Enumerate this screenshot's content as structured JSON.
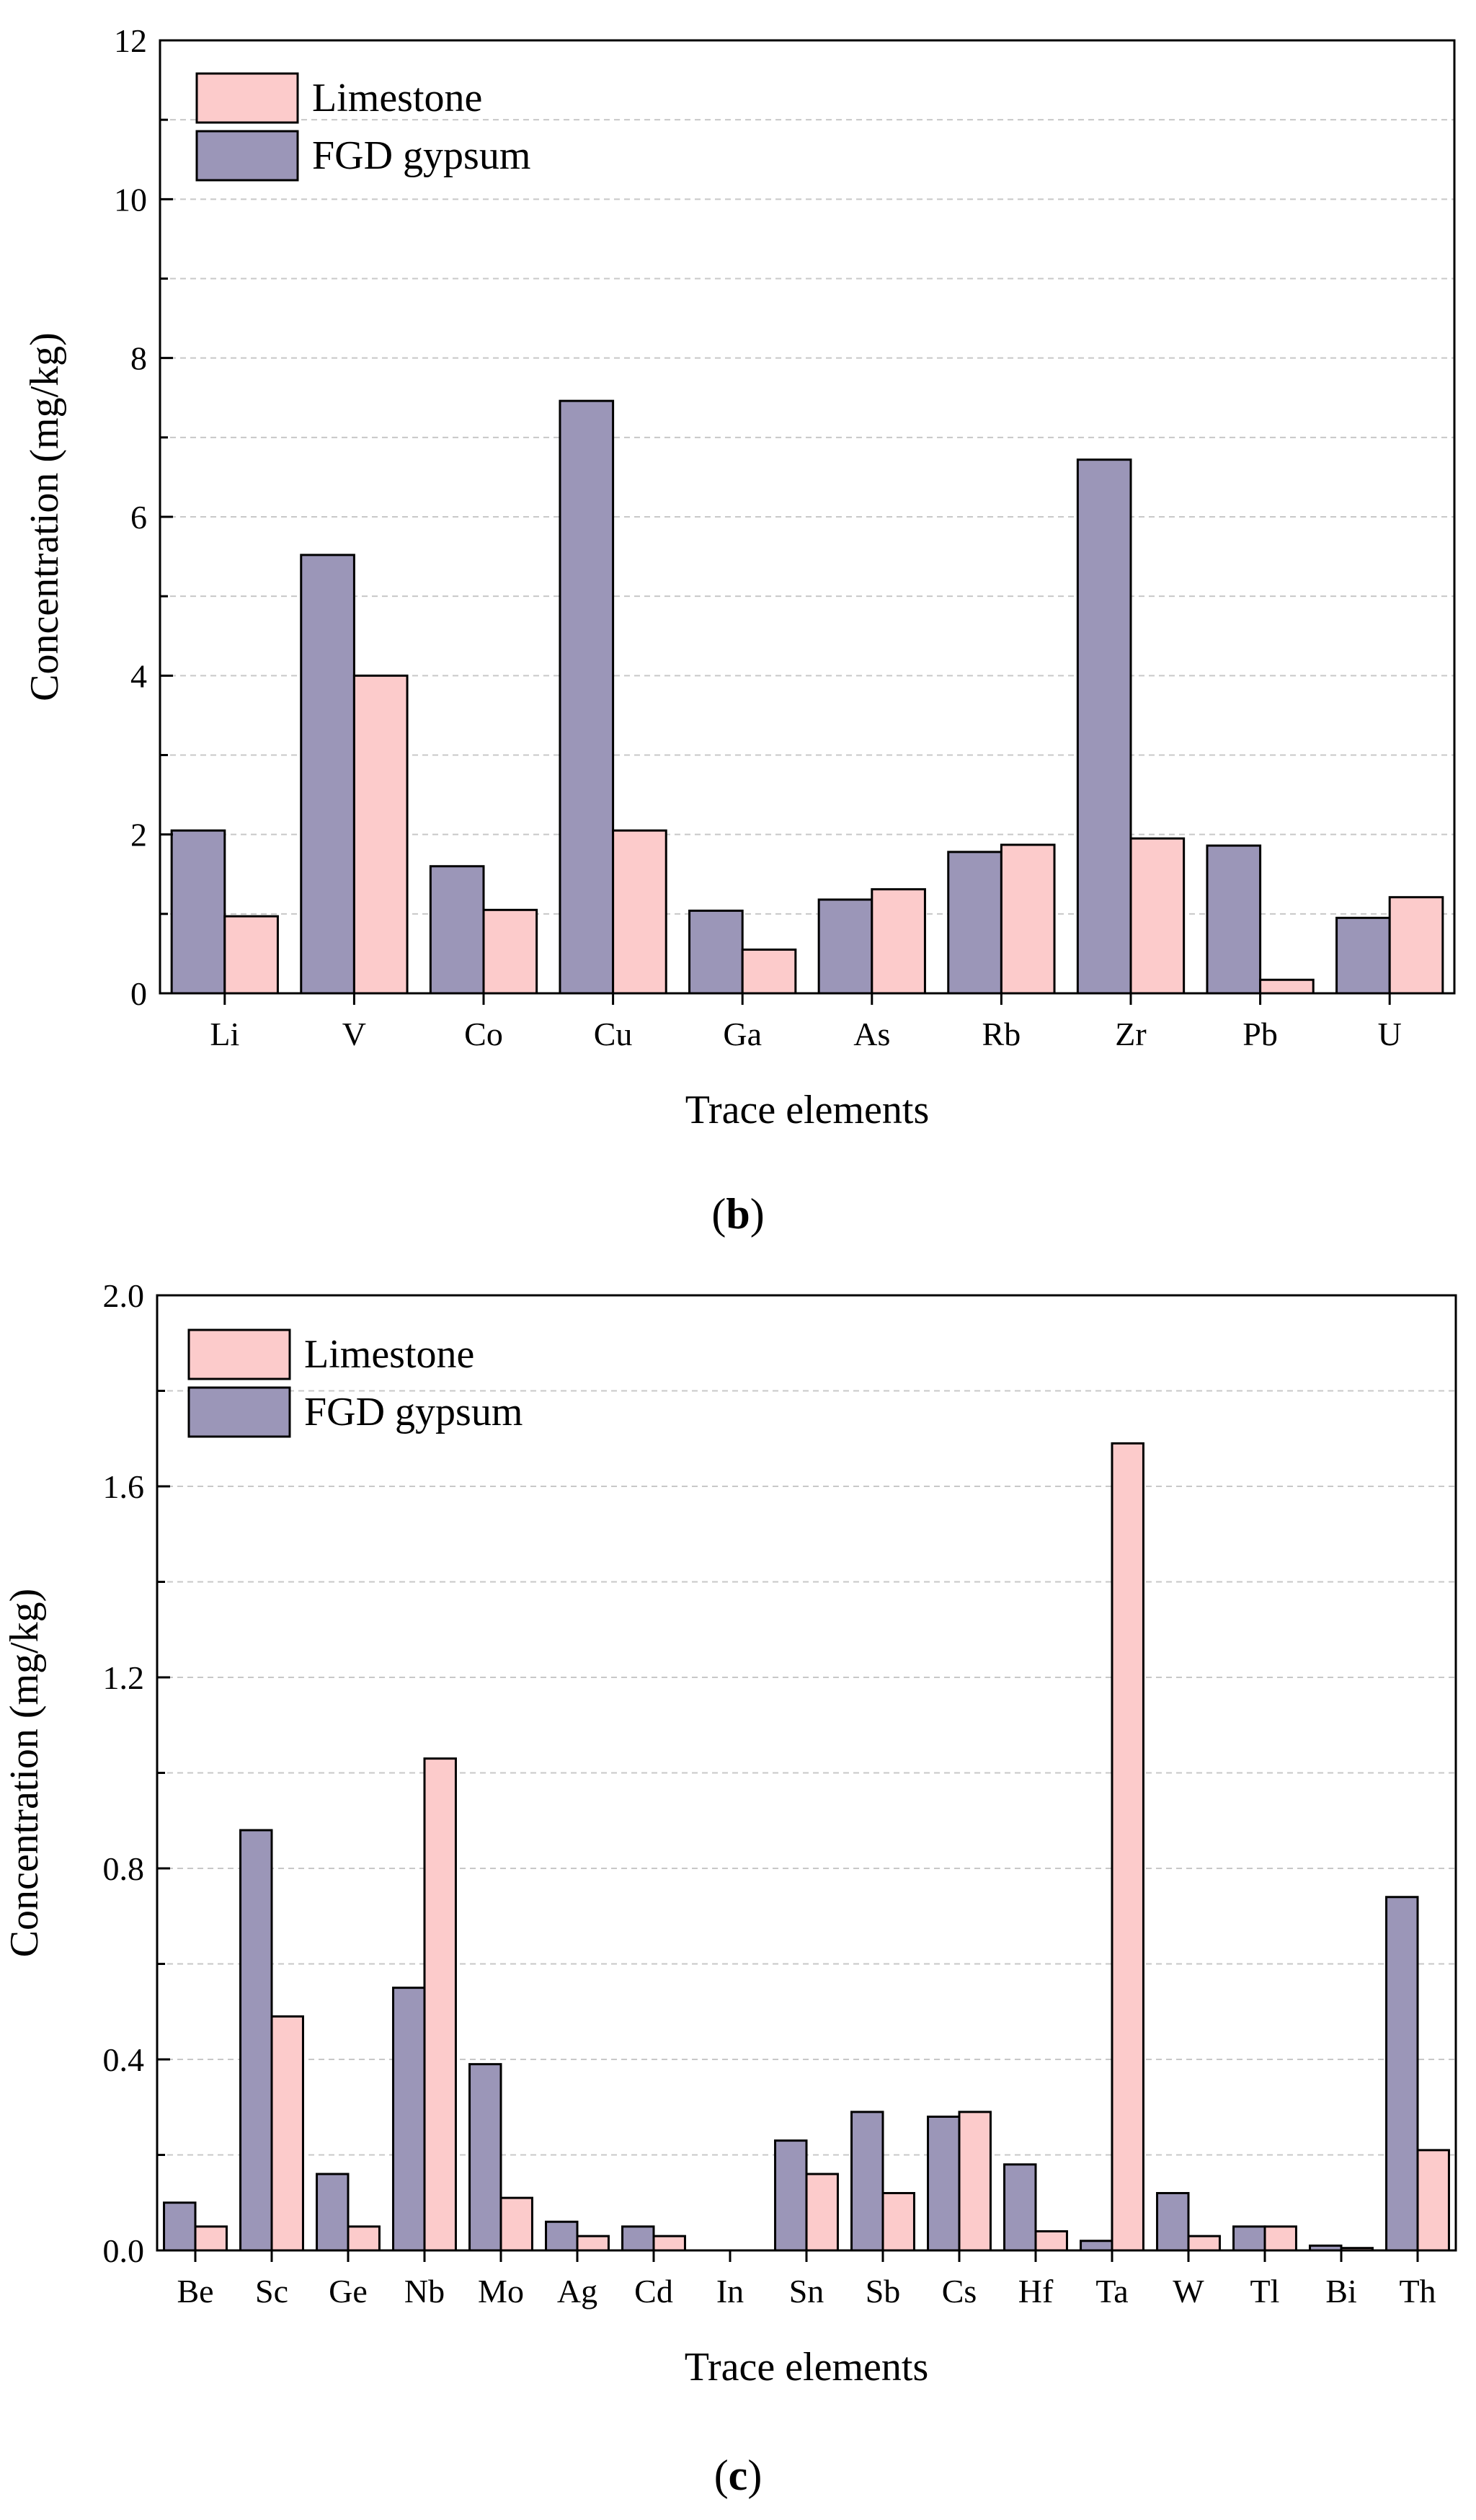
{
  "colors": {
    "limestone": "#fccbcb",
    "fgd_gypsum": "#9b96b8",
    "axis": "#000000",
    "grid": "#c8c8c8"
  },
  "chart_data": [
    {
      "id": "b",
      "type": "bar",
      "panel_label": "b",
      "xlabel": "Trace elements",
      "ylabel": "Concentration (mg/kg)",
      "ylim": [
        0,
        12
      ],
      "yticks": [
        "0",
        "2",
        "4",
        "6",
        "8",
        "10",
        "12"
      ],
      "grid": "horizontal dashed",
      "legend_position": "top-left",
      "legend_order": [
        "Limestone",
        "FGD gypsum"
      ],
      "categories": [
        "Li",
        "V",
        "Co",
        "Cu",
        "Ga",
        "As",
        "Rb",
        "Zr",
        "Pb",
        "U"
      ],
      "series": [
        {
          "name": "FGD gypsum",
          "values": [
            2.05,
            5.52,
            1.6,
            7.46,
            1.04,
            1.18,
            1.78,
            6.72,
            1.86,
            0.95
          ]
        },
        {
          "name": "Limestone",
          "values": [
            0.97,
            4.0,
            1.05,
            2.05,
            0.55,
            1.31,
            1.87,
            1.95,
            0.17,
            1.21
          ]
        }
      ]
    },
    {
      "id": "c",
      "type": "bar",
      "panel_label": "c",
      "xlabel": "Trace elements",
      "ylabel": "Concentration (mg/kg)",
      "ylim": [
        0,
        2.0
      ],
      "yticks": [
        "0.0",
        "0.4",
        "0.8",
        "1.2",
        "1.6",
        "2.0"
      ],
      "grid": "horizontal dashed",
      "legend_position": "top-left",
      "legend_order": [
        "Limestone",
        "FGD gypsum"
      ],
      "categories": [
        "Be",
        "Sc",
        "Ge",
        "Nb",
        "Mo",
        "Ag",
        "Cd",
        "In",
        "Sn",
        "Sb",
        "Cs",
        "Hf",
        "Ta",
        "W",
        "Tl",
        "Bi",
        "Th"
      ],
      "series": [
        {
          "name": "FGD gypsum",
          "values": [
            0.1,
            0.88,
            0.16,
            0.55,
            0.39,
            0.06,
            0.05,
            0.0,
            0.23,
            0.29,
            0.28,
            0.18,
            0.02,
            0.12,
            0.05,
            0.01,
            0.74
          ]
        },
        {
          "name": "Limestone",
          "values": [
            0.05,
            0.49,
            0.05,
            1.03,
            0.11,
            0.03,
            0.03,
            0.0,
            0.16,
            0.12,
            0.29,
            0.04,
            1.69,
            0.03,
            0.05,
            0.005,
            0.21
          ]
        }
      ]
    }
  ]
}
